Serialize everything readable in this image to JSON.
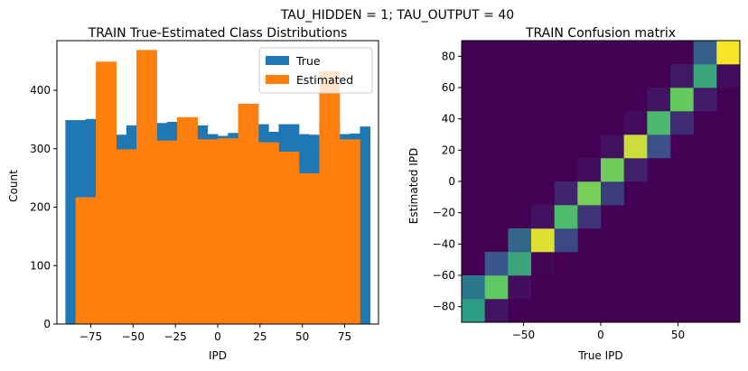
{
  "suptitle": "TAU_HIDDEN = 1; TAU_OUTPUT = 40",
  "chart_data": [
    {
      "type": "bar",
      "subtype": "histogram",
      "title": "TRAIN True-Estimated Class Distributions",
      "xlabel": "IPD",
      "ylabel": "Count",
      "xlim": [
        -95,
        95
      ],
      "ylim": [
        0,
        485
      ],
      "xticks": [
        -75,
        -50,
        -25,
        0,
        25,
        50,
        75
      ],
      "xtick_labels": [
        "−75",
        "−50",
        "−25",
        "0",
        "25",
        "50",
        "75"
      ],
      "yticks": [
        0,
        100,
        200,
        300,
        400
      ],
      "yticks_labels": [
        "0",
        "100",
        "200",
        "300",
        "400"
      ],
      "legend": {
        "position": "top-right",
        "entries": [
          "True",
          "Estimated"
        ]
      },
      "series": [
        {
          "name": "True",
          "color": "#1f77b4",
          "bins": [
            [
              -90,
              -84,
              349
            ],
            [
              -84,
              -78,
              349
            ],
            [
              -78,
              -72,
              351
            ],
            [
              -72,
              -66,
              321
            ],
            [
              -66,
              -60,
              323
            ],
            [
              -60,
              -54,
              324
            ],
            [
              -54,
              -48,
              340
            ],
            [
              -48,
              -42,
              345
            ],
            [
              -42,
              -36,
              343
            ],
            [
              -36,
              -30,
              344
            ],
            [
              -30,
              -24,
              346
            ],
            [
              -24,
              -18,
              346
            ],
            [
              -18,
              -12,
              344
            ],
            [
              -12,
              -6,
              340
            ],
            [
              -6,
              0,
              325
            ],
            [
              0,
              6,
              322
            ],
            [
              6,
              12,
              327
            ],
            [
              12,
              18,
              326
            ],
            [
              18,
              24,
              340
            ],
            [
              24,
              30,
              342
            ],
            [
              30,
              36,
              329
            ],
            [
              36,
              42,
              342
            ],
            [
              42,
              48,
              342
            ],
            [
              48,
              54,
              325
            ],
            [
              54,
              60,
              324
            ],
            [
              60,
              66,
              346
            ],
            [
              66,
              72,
              346
            ],
            [
              72,
              78,
              325
            ],
            [
              78,
              84,
              326
            ],
            [
              84,
              90,
              338
            ]
          ]
        },
        {
          "name": "Estimated",
          "color": "#ff7f0e",
          "bins": [
            [
              -84,
              -72,
              217
            ],
            [
              -72,
              -60,
              449
            ],
            [
              -60,
              -48,
              299
            ],
            [
              -48,
              -36,
              469
            ],
            [
              -36,
              -24,
              314
            ],
            [
              -24,
              -12,
              354
            ],
            [
              -12,
              0,
              316
            ],
            [
              0,
              12,
              318
            ],
            [
              12,
              24,
              377
            ],
            [
              24,
              36,
              311
            ],
            [
              36,
              48,
              295
            ],
            [
              48,
              60,
              258
            ],
            [
              60,
              72,
              433
            ],
            [
              72,
              84,
              316
            ]
          ]
        }
      ]
    },
    {
      "type": "heatmap",
      "title": "TRAIN Confusion matrix",
      "xlabel": "True IPD",
      "ylabel": "Estimated IPD",
      "xlim": [
        -90,
        90
      ],
      "ylim": [
        -90,
        90
      ],
      "xticks": [
        -50,
        0,
        50
      ],
      "xtick_labels": [
        "−50",
        "0",
        "50"
      ],
      "yticks": [
        -80,
        -60,
        -40,
        -20,
        0,
        20,
        40,
        60,
        80
      ],
      "ytick_labels": [
        "−80",
        "−60",
        "−40",
        "−20",
        "0",
        "20",
        "40",
        "60",
        "80"
      ],
      "colormap": [
        "#440154",
        "#3b528b",
        "#21918c",
        "#5ec962",
        "#fde725"
      ],
      "cell_count": 12,
      "cells": [
        [
          0,
          0,
          0.55
        ],
        [
          1,
          0,
          0.06
        ],
        [
          0,
          1,
          0.4
        ],
        [
          1,
          1,
          0.75
        ],
        [
          2,
          1,
          0.04
        ],
        [
          1,
          2,
          0.27
        ],
        [
          2,
          2,
          0.6
        ],
        [
          3,
          2,
          0.02
        ],
        [
          2,
          3,
          0.33
        ],
        [
          3,
          3,
          0.95
        ],
        [
          4,
          3,
          0.22
        ],
        [
          3,
          4,
          0.05
        ],
        [
          4,
          4,
          0.69
        ],
        [
          5,
          4,
          0.15
        ],
        [
          4,
          5,
          0.11
        ],
        [
          5,
          5,
          0.79
        ],
        [
          6,
          5,
          0.18
        ],
        [
          5,
          6,
          0.04
        ],
        [
          6,
          6,
          0.78
        ],
        [
          7,
          6,
          0.1
        ],
        [
          6,
          7,
          0.05
        ],
        [
          7,
          7,
          0.92
        ],
        [
          8,
          7,
          0.24
        ],
        [
          7,
          8,
          0.03
        ],
        [
          8,
          8,
          0.68
        ],
        [
          9,
          8,
          0.13
        ],
        [
          8,
          9,
          0.06
        ],
        [
          9,
          9,
          0.76
        ],
        [
          10,
          9,
          0.08
        ],
        [
          9,
          10,
          0.07
        ],
        [
          10,
          10,
          0.6
        ],
        [
          11,
          10,
          0.03
        ],
        [
          10,
          11,
          0.3
        ],
        [
          11,
          11,
          0.99
        ]
      ]
    }
  ]
}
